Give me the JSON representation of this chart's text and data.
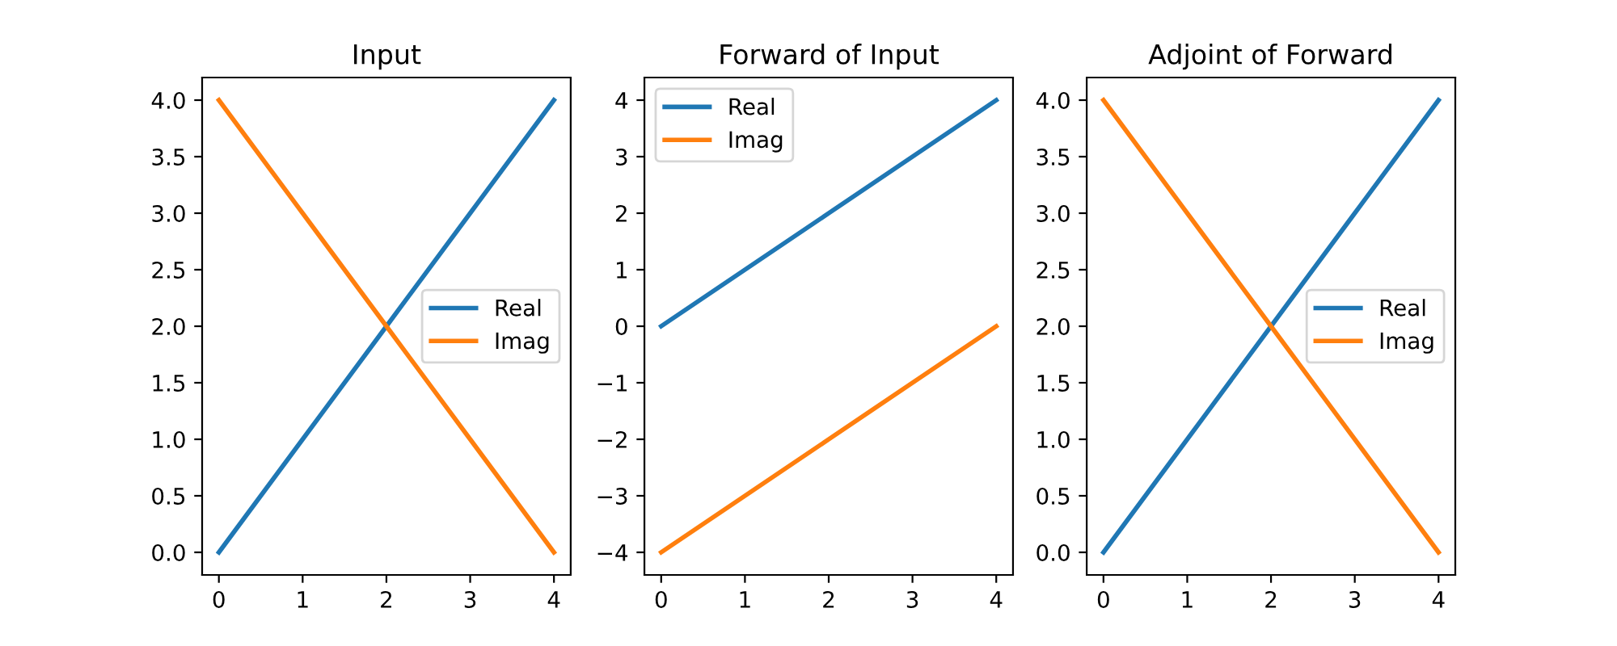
{
  "chart_data": [
    {
      "type": "line",
      "title": "Input",
      "x": [
        0,
        1,
        2,
        3,
        4
      ],
      "series": [
        {
          "name": "Real",
          "color": "#1f77b4",
          "values": [
            0,
            1,
            2,
            3,
            4
          ]
        },
        {
          "name": "Imag",
          "color": "#ff7f0e",
          "values": [
            4,
            3,
            2,
            1,
            0
          ]
        }
      ],
      "xlim": [
        -0.2,
        4.2
      ],
      "ylim": [
        -0.2,
        4.2
      ],
      "xticks": [
        0,
        1,
        2,
        3,
        4
      ],
      "yticks": [
        {
          "value": 0,
          "label": "0.0"
        },
        {
          "value": 0.5,
          "label": "0.5"
        },
        {
          "value": 1,
          "label": "1.0"
        },
        {
          "value": 1.5,
          "label": "1.5"
        },
        {
          "value": 2,
          "label": "2.0"
        },
        {
          "value": 2.5,
          "label": "2.5"
        },
        {
          "value": 3,
          "label": "3.0"
        },
        {
          "value": 3.5,
          "label": "3.5"
        },
        {
          "value": 4,
          "label": "4.0"
        }
      ],
      "legend": "center right",
      "grid": false
    },
    {
      "type": "line",
      "title": "Forward of Input",
      "x": [
        0,
        1,
        2,
        3,
        4
      ],
      "series": [
        {
          "name": "Real",
          "color": "#1f77b4",
          "values": [
            0,
            1,
            2,
            3,
            4
          ]
        },
        {
          "name": "Imag",
          "color": "#ff7f0e",
          "values": [
            -4,
            -3,
            -2,
            -1,
            0
          ]
        }
      ],
      "xlim": [
        -0.2,
        4.2
      ],
      "ylim": [
        -4.4,
        4.4
      ],
      "xticks": [
        0,
        1,
        2,
        3,
        4
      ],
      "yticks": [
        {
          "value": -4,
          "label": "−4"
        },
        {
          "value": -3,
          "label": "−3"
        },
        {
          "value": -2,
          "label": "−2"
        },
        {
          "value": -1,
          "label": "−1"
        },
        0,
        1,
        2,
        3,
        4
      ],
      "legend": "top left",
      "grid": false
    },
    {
      "type": "line",
      "title": "Adjoint of Forward",
      "x": [
        0,
        1,
        2,
        3,
        4
      ],
      "series": [
        {
          "name": "Real",
          "color": "#1f77b4",
          "values": [
            0,
            1,
            2,
            3,
            4
          ]
        },
        {
          "name": "Imag",
          "color": "#ff7f0e",
          "values": [
            4,
            3,
            2,
            1,
            0
          ]
        }
      ],
      "xlim": [
        -0.2,
        4.2
      ],
      "ylim": [
        -0.2,
        4.2
      ],
      "xticks": [
        0,
        1,
        2,
        3,
        4
      ],
      "yticks": [
        {
          "value": 0,
          "label": "0.0"
        },
        {
          "value": 0.5,
          "label": "0.5"
        },
        {
          "value": 1,
          "label": "1.0"
        },
        {
          "value": 1.5,
          "label": "1.5"
        },
        {
          "value": 2,
          "label": "2.0"
        },
        {
          "value": 2.5,
          "label": "2.5"
        },
        {
          "value": 3,
          "label": "3.0"
        },
        {
          "value": 3.5,
          "label": "3.5"
        },
        {
          "value": 4,
          "label": "4.0"
        }
      ],
      "legend": "center right",
      "grid": false
    }
  ]
}
